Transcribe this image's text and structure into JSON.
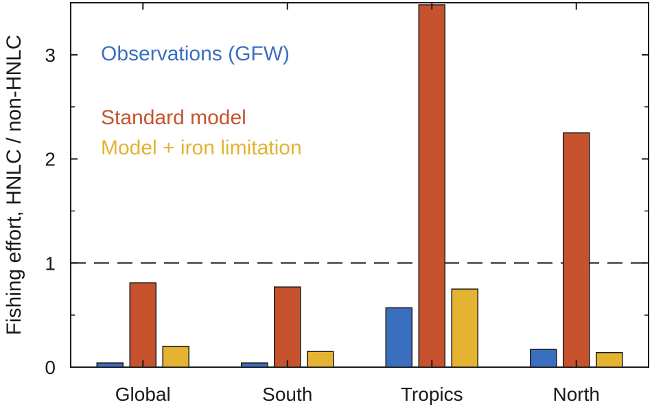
{
  "chart_data": {
    "type": "bar",
    "categories": [
      "Global",
      "South",
      "Tropics",
      "North"
    ],
    "series": [
      {
        "name": "Observations (GFW)",
        "color": "#3a6fbf",
        "values": [
          0.04,
          0.04,
          0.57,
          0.17
        ]
      },
      {
        "name": "Standard model",
        "color": "#c6532d",
        "values": [
          0.81,
          0.77,
          3.48,
          2.25
        ]
      },
      {
        "name": "Model + iron limitation",
        "color": "#e3b331",
        "values": [
          0.2,
          0.15,
          0.75,
          0.14
        ]
      }
    ],
    "title": "",
    "xlabel": "",
    "ylabel": "Fishing effort, HNLC / non-HNLC",
    "ylim": [
      0,
      3.5
    ],
    "yticks": [
      0,
      1,
      2,
      3
    ],
    "reference_line": {
      "y": 1,
      "style": "dashed"
    },
    "legend_placement": "top-left",
    "grid": false
  }
}
